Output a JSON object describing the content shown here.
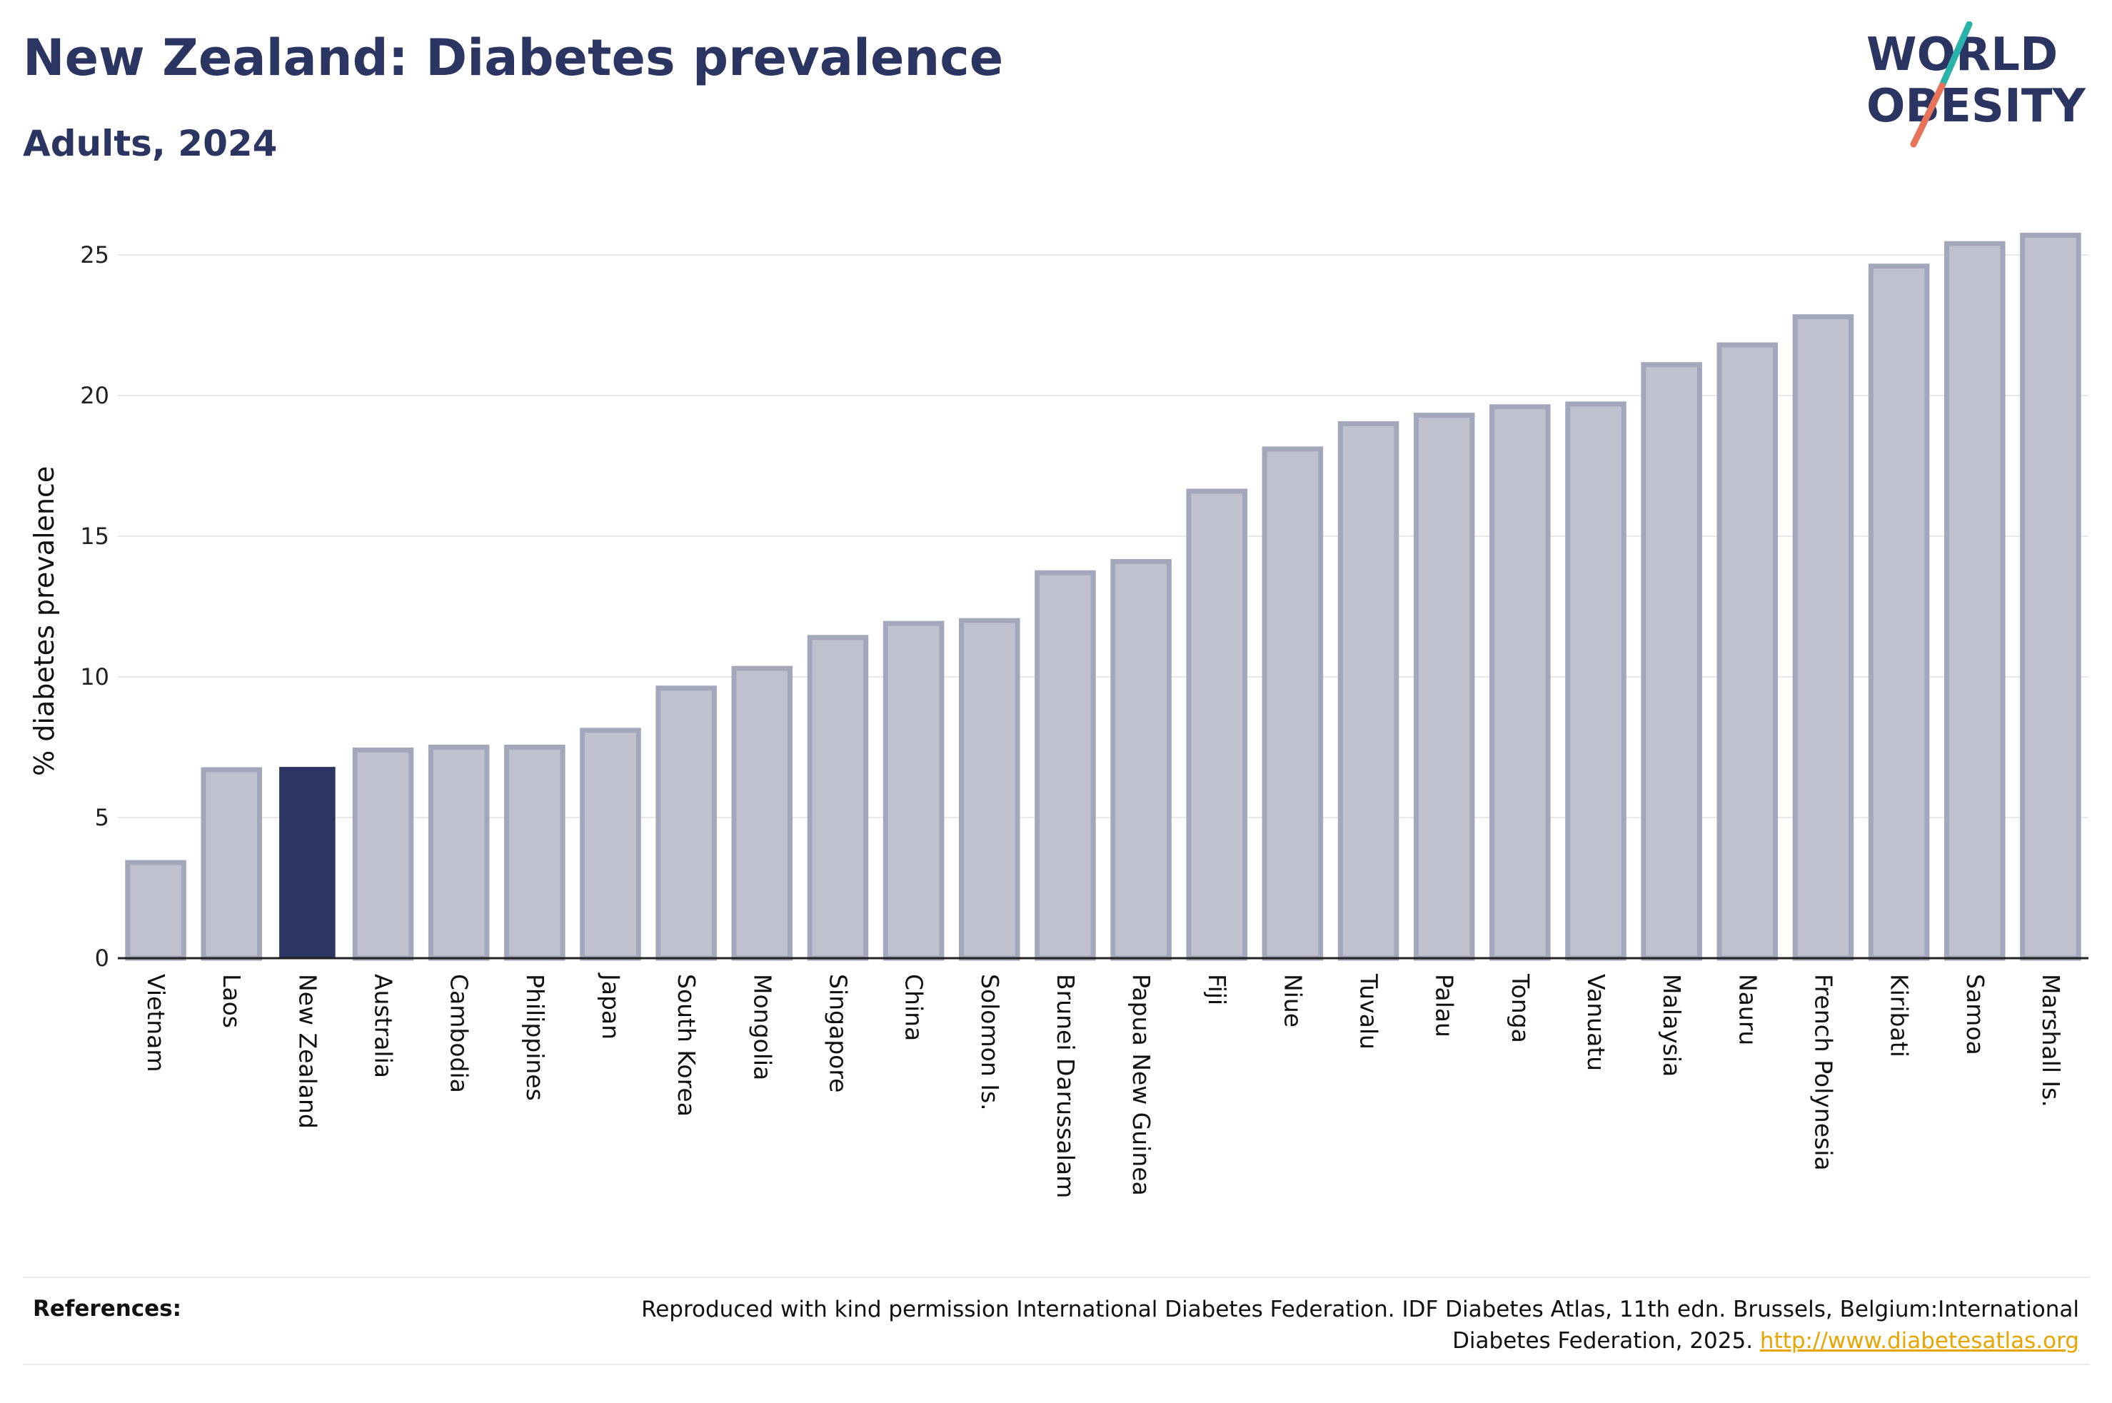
{
  "header": {
    "title": "New Zealand: Diabetes prevalence",
    "subtitle": "Adults, 2024"
  },
  "logo": {
    "line1": "WORLD",
    "line2": "OBESITY",
    "colors": {
      "text": "#2b3561",
      "slash_top": "#2ab3a8",
      "slash_bottom": "#e8735a"
    }
  },
  "colors": {
    "bar_default": "#bfc2ce",
    "bar_default_stroke": "#a2a7bb",
    "bar_highlight": "#2b3561",
    "gridline": "#e8e8e8",
    "axis": "#222222"
  },
  "chart_data": {
    "type": "bar",
    "ylabel": "% diabetes prevalence",
    "ylim": [
      0,
      26
    ],
    "yticks": [
      0,
      5,
      10,
      15,
      20,
      25
    ],
    "grid": true,
    "highlight": "New Zealand",
    "categories": [
      "Vietnam",
      "Laos",
      "New Zealand",
      "Australia",
      "Cambodia",
      "Philippines",
      "Japan",
      "South Korea",
      "Mongolia",
      "Singapore",
      "China",
      "Solomon Is.",
      "Brunei Darussalam",
      "Papua New Guinea",
      "Fiji",
      "Niue",
      "Tuvalu",
      "Palau",
      "Tonga",
      "Vanuatu",
      "Malaysia",
      "Nauru",
      "French Polynesia",
      "Kiribati",
      "Samoa",
      "Marshall Is."
    ],
    "values": [
      3.4,
      6.7,
      6.8,
      7.4,
      7.5,
      7.5,
      8.1,
      9.6,
      10.3,
      11.4,
      11.9,
      12.0,
      13.7,
      14.1,
      16.6,
      18.1,
      19.0,
      19.3,
      19.6,
      19.7,
      21.1,
      21.8,
      22.8,
      24.6,
      25.4,
      25.7
    ]
  },
  "references": {
    "label": "References:",
    "text": "Reproduced with kind permission International Diabetes Federation. IDF Diabetes Atlas, 11th edn. Brussels, Belgium:International Diabetes Federation, 2025.",
    "link": "http://www.diabetesatlas.org"
  }
}
